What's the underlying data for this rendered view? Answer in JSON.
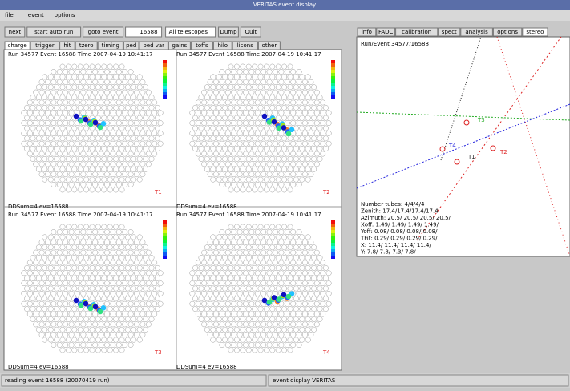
{
  "window_title": "VERITAS event display",
  "menu": [
    "file",
    "event",
    "options"
  ],
  "toolbar": {
    "buttons": [
      "next",
      "start auto run",
      "goto event"
    ],
    "event_number": "16588",
    "telescope_select": "All telescopes",
    "extra_buttons": [
      "Dump",
      "Quit"
    ]
  },
  "left_tabs": [
    "charge",
    "trigger",
    "hit",
    "tzero",
    "timing",
    "ped",
    "ped var",
    "gains",
    "toffs",
    "hilo",
    "licons",
    "other"
  ],
  "cameras": [
    {
      "label": "T1",
      "header": "Run 34577 Event 16588 Time 2007-04-19 10:41:17",
      "footer": "DDSum=4 ev=16588"
    },
    {
      "label": "T2",
      "header": "Run 34577 Event 16588 Time 2007-04-19 10:41:17",
      "footer": "DDSum=4 ev=16588"
    },
    {
      "label": "T3",
      "header": "Run 34577 Event 16588 Time 2007-04-19 10:41:17",
      "footer": "DDSum=4 ev=16588"
    },
    {
      "label": "T4",
      "header": "Run 34577 Event 16588 Time 2007-04-19 10:41:17",
      "footer": "DDSum=4 ev=16588"
    }
  ],
  "right_tabs": [
    "info",
    "FADC",
    "calibration",
    "spect",
    "analysis",
    "options",
    "stereo"
  ],
  "stereo": {
    "run_event": "Run/Event 34577/16588",
    "labels": [
      "T3",
      "T4",
      "T2",
      "T1"
    ],
    "info_lines": [
      "Number tubes: 4/4/4/4",
      "Zenith: 17.4/17.4/17.4/17.4",
      "Azimuth: 20.5/ 20.5/ 20.5/ 20.5/",
      "Xoff: 1.49/ 1.49/ 1.49/ 1.49/",
      "Yoff: 0.08/ 0.08/ 0.08/ 0.08/",
      "TFit: 0.29/ 0.29/ 0.29/ 0.29/",
      "X: 11.4/ 11.4/ 11.4/ 11.4/",
      "Y: 7.8/ 7.8/ 7.3/ 7.8/"
    ]
  },
  "status": [
    "reading event 16588 (20070419 run)",
    "event display VERITAS"
  ]
}
